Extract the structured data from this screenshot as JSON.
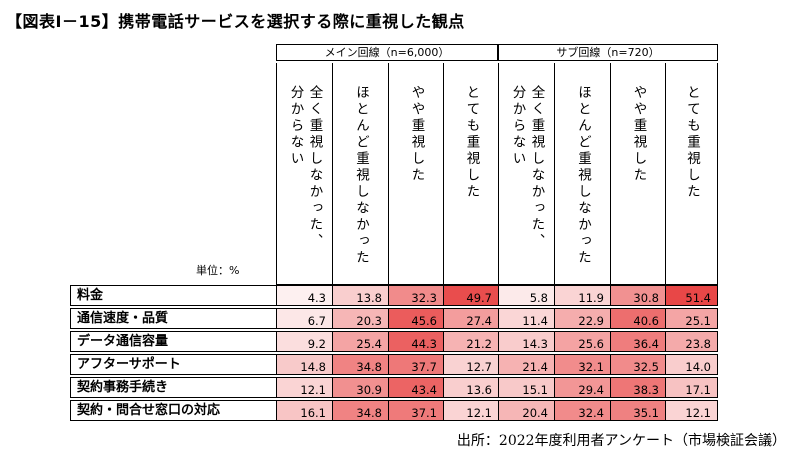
{
  "title": "【図表Ⅰ－15】携帯電話サービスを選択する際に重視した観点",
  "unit_label": "単位：%",
  "groups": [
    {
      "label": "メイン回線（n=6,000）"
    },
    {
      "label": "サブ回線（n=720）"
    }
  ],
  "columns": [
    {
      "lines": [
        "全く重視しなかった、",
        "分からない"
      ]
    },
    {
      "lines": [
        "ほとんど重視しなかった"
      ]
    },
    {
      "lines": [
        "やや重視した"
      ]
    },
    {
      "lines": [
        "とても重視した"
      ]
    },
    {
      "lines": [
        "全く重視しなかった、",
        "分からない"
      ]
    },
    {
      "lines": [
        "ほとんど重視しなかった"
      ]
    },
    {
      "lines": [
        "やや重視した"
      ]
    },
    {
      "lines": [
        "とても重視した"
      ]
    }
  ],
  "rows": [
    {
      "label": "料金",
      "values": [
        "4.3",
        "13.8",
        "32.3",
        "49.7",
        "5.8",
        "11.9",
        "30.8",
        "51.4"
      ]
    },
    {
      "label": "通信速度・品質",
      "values": [
        "6.7",
        "20.3",
        "45.6",
        "27.4",
        "11.4",
        "22.9",
        "40.6",
        "25.1"
      ]
    },
    {
      "label": "データ通信容量",
      "values": [
        "9.2",
        "25.4",
        "44.3",
        "21.2",
        "14.3",
        "25.6",
        "36.4",
        "23.8"
      ]
    },
    {
      "label": "アフターサポート",
      "values": [
        "14.8",
        "34.8",
        "37.7",
        "12.7",
        "21.4",
        "32.1",
        "32.5",
        "14.0"
      ]
    },
    {
      "label": "契約事務手続き",
      "values": [
        "12.1",
        "30.9",
        "43.4",
        "13.6",
        "15.1",
        "29.4",
        "38.3",
        "17.1"
      ]
    },
    {
      "label": "契約・問合せ窓口の対応",
      "values": [
        "16.1",
        "34.8",
        "37.1",
        "12.1",
        "20.4",
        "32.4",
        "35.1",
        "12.1"
      ]
    }
  ],
  "source": "出所：2022年度利用者アンケート（市場検証会議）"
}
